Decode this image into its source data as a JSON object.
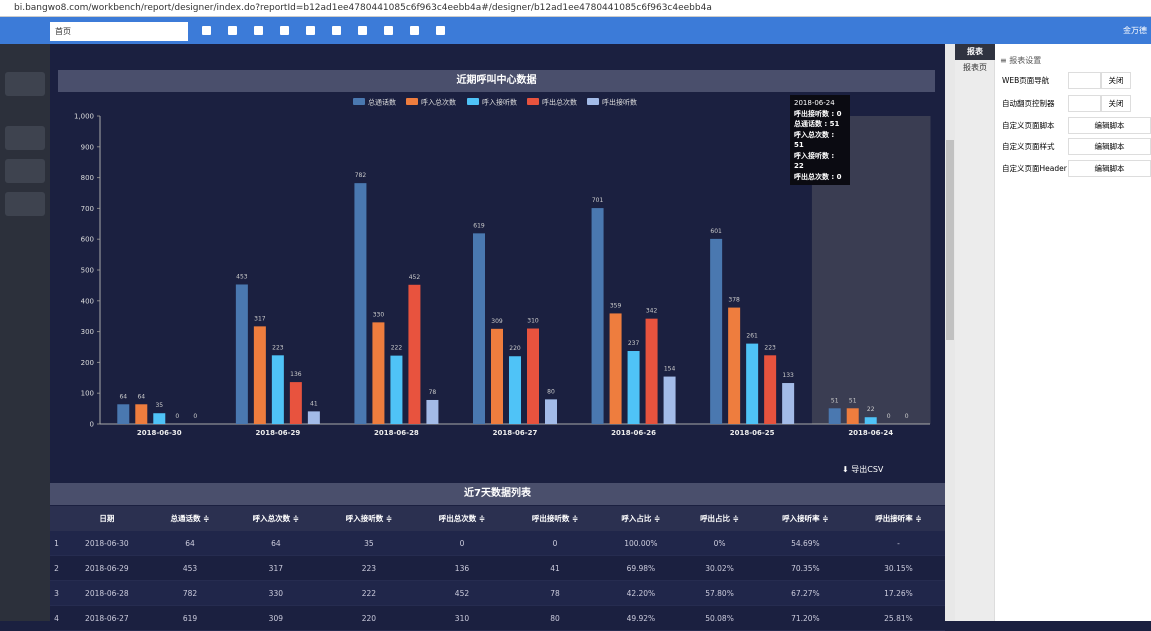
{
  "browser": {
    "url": "bi.bangwo8.com/workbench/report/designer/index.do?reportId=b12ad1ee4780441085c6f963c4eebb4a#/designer/b12ad1ee4780441085c6f963c4eebb4a"
  },
  "toolbar": {
    "page_input": "首页",
    "user": "金万德"
  },
  "chart_data": {
    "type": "bar",
    "title": "近期呼叫中心数据",
    "categories": [
      "2018-06-30",
      "2018-06-29",
      "2018-06-28",
      "2018-06-27",
      "2018-06-26",
      "2018-06-25",
      "2018-06-24"
    ],
    "series": [
      {
        "name": "总通话数",
        "color": "#4a78b0",
        "values": [
          64,
          453,
          782,
          619,
          701,
          601,
          51
        ]
      },
      {
        "name": "呼入总次数",
        "color": "#ee7d3e",
        "values": [
          64,
          317,
          330,
          309,
          359,
          378,
          51
        ]
      },
      {
        "name": "呼入接听数",
        "color": "#4fc3f7",
        "values": [
          35,
          223,
          222,
          220,
          237,
          261,
          22
        ]
      },
      {
        "name": "呼出总次数",
        "color": "#e8533e",
        "values": [
          0,
          136,
          452,
          310,
          342,
          223,
          0
        ]
      },
      {
        "name": "呼出接听数",
        "color": "#a3bbe8",
        "values": [
          0,
          41,
          78,
          80,
          154,
          133,
          0
        ]
      }
    ],
    "ylim": [
      0,
      1000
    ],
    "yticks": [
      0,
      100,
      200,
      300,
      400,
      500,
      600,
      700,
      800,
      900,
      {
        "value": 1000,
        "label": "1,000"
      }
    ],
    "legend": "top",
    "tooltip": {
      "title": "2018-06-24",
      "lines": [
        "呼出接听数 : 0",
        "总通话数 : 51",
        "呼入总次数 : 51",
        "呼入接听数 : 22",
        "呼出总次数 : 0"
      ]
    },
    "export": "导出CSV"
  },
  "table": {
    "title": "近7天数据列表",
    "columns": [
      "日期",
      "总通话数",
      "呼入总次数",
      "呼入接听数",
      "呼出总次数",
      "呼出接听数",
      "呼入占比",
      "呼出占比",
      "呼入接听率",
      "呼出接听率"
    ],
    "rows": [
      [
        "1",
        "2018-06-30",
        "64",
        "64",
        "35",
        "0",
        "0",
        "100.00%",
        "0%",
        "54.69%",
        "-"
      ],
      [
        "2",
        "2018-06-29",
        "453",
        "317",
        "223",
        "136",
        "41",
        "69.98%",
        "30.02%",
        "70.35%",
        "30.15%"
      ],
      [
        "3",
        "2018-06-28",
        "782",
        "330",
        "222",
        "452",
        "78",
        "42.20%",
        "57.80%",
        "67.27%",
        "17.26%"
      ],
      [
        "4",
        "2018-06-27",
        "619",
        "309",
        "220",
        "310",
        "80",
        "49.92%",
        "50.08%",
        "71.20%",
        "25.81%"
      ]
    ]
  },
  "panel": {
    "tabs": [
      "报表",
      "报表页"
    ],
    "heading": "报表设置",
    "settings": [
      {
        "label": "WEB页面导航",
        "button": "关闭"
      },
      {
        "label": "自动翻页控制器",
        "button": "关闭"
      },
      {
        "label": "自定义页面脚本",
        "button": "编辑脚本"
      },
      {
        "label": "自定义页面样式",
        "button": "编辑脚本"
      },
      {
        "label": "自定义页面Header",
        "button": "编辑脚本"
      }
    ]
  }
}
